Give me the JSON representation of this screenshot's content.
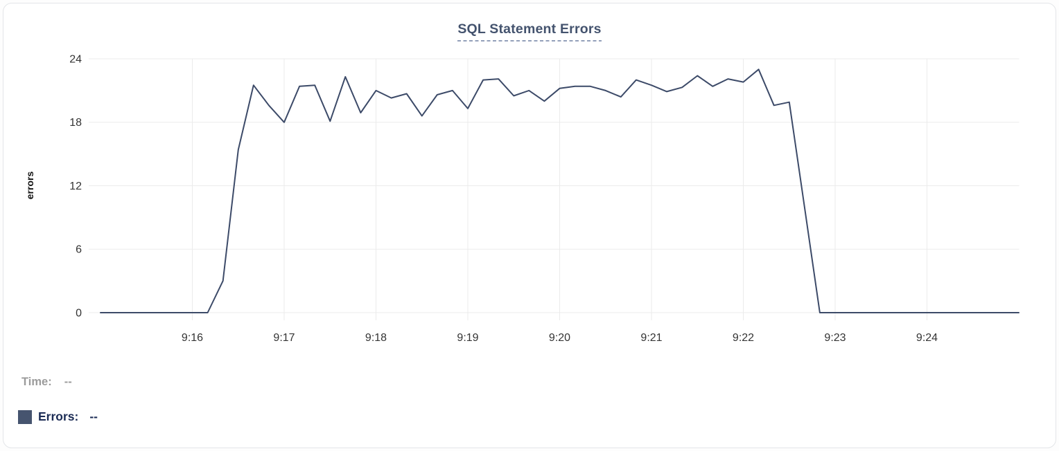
{
  "title": "SQL Statement Errors",
  "tooltip_readout": {
    "time_label": "Time:",
    "time_value": "--",
    "errors_label": "Errors:",
    "errors_value": "--",
    "swatch_color": "#46546f"
  },
  "colors": {
    "line": "#3c4a68",
    "title": "#44536e",
    "title_underline": "#93a0ba",
    "grid": "#ebebeb",
    "tick_text": "#333333",
    "legend_gray": "#9b9b9b",
    "legend_navy": "#1c2c55",
    "card_border": "#e3e5e8"
  },
  "chart_data": {
    "type": "line",
    "title": "SQL Statement Errors",
    "xlabel": "",
    "ylabel": "errors",
    "ylim": [
      0,
      24
    ],
    "y_ticks": [
      0,
      6,
      12,
      18,
      24
    ],
    "x_ticks": [
      "9:16",
      "9:17",
      "9:18",
      "9:19",
      "9:20",
      "9:21",
      "9:22",
      "9:23",
      "9:24"
    ],
    "x_range": [
      "9:15:00",
      "9:25:00"
    ],
    "grid": true,
    "legend_position": "bottom-left",
    "series": [
      {
        "name": "Errors",
        "color": "#3c4a68",
        "x": [
          "9:15:00",
          "9:15:10",
          "9:15:20",
          "9:15:30",
          "9:15:40",
          "9:15:50",
          "9:16:00",
          "9:16:10",
          "9:16:20",
          "9:16:30",
          "9:16:40",
          "9:16:50",
          "9:17:00",
          "9:17:10",
          "9:17:20",
          "9:17:30",
          "9:17:40",
          "9:17:50",
          "9:18:00",
          "9:18:10",
          "9:18:20",
          "9:18:30",
          "9:18:40",
          "9:18:50",
          "9:19:00",
          "9:19:10",
          "9:19:20",
          "9:19:30",
          "9:19:40",
          "9:19:50",
          "9:20:00",
          "9:20:10",
          "9:20:20",
          "9:20:30",
          "9:20:40",
          "9:20:50",
          "9:21:00",
          "9:21:10",
          "9:21:20",
          "9:21:30",
          "9:21:40",
          "9:21:50",
          "9:22:00",
          "9:22:10",
          "9:22:20",
          "9:22:30",
          "9:22:40",
          "9:22:50",
          "9:23:00",
          "9:23:10",
          "9:23:20",
          "9:23:30",
          "9:23:40",
          "9:23:50",
          "9:24:00",
          "9:24:10",
          "9:24:20",
          "9:24:30",
          "9:24:40",
          "9:24:50",
          "9:25:00"
        ],
        "values": [
          0,
          0,
          0,
          0,
          0,
          0,
          0,
          0,
          3,
          15.4,
          21.5,
          19.6,
          18,
          21.4,
          21.5,
          18.1,
          22.3,
          18.9,
          21,
          20.3,
          20.7,
          18.6,
          20.6,
          21,
          19.3,
          22,
          22.1,
          20.5,
          21,
          20,
          21.2,
          21.4,
          21.4,
          21,
          20.4,
          22,
          21.5,
          20.9,
          21.3,
          22.4,
          21.4,
          22.1,
          21.8,
          23,
          19.6,
          19.9,
          10,
          0,
          0,
          0,
          0,
          0,
          0,
          0,
          0,
          0,
          0,
          0,
          0,
          0,
          0
        ]
      }
    ]
  }
}
